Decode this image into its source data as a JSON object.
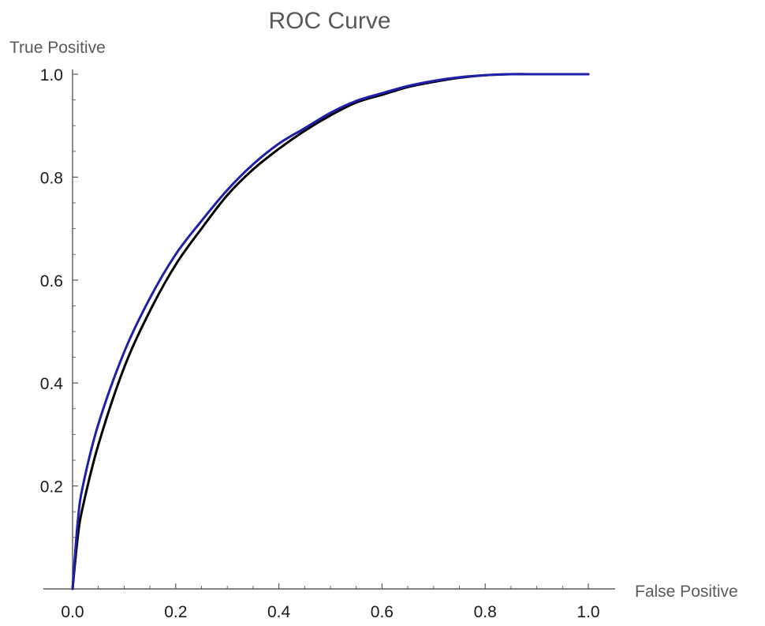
{
  "chart_data": {
    "type": "line",
    "title": "ROC Curve",
    "xlabel": "False Positive",
    "ylabel": "True Positive",
    "xlim": [
      0,
      1
    ],
    "ylim": [
      0,
      1
    ],
    "x_ticks": [
      "0.0",
      "0.2",
      "0.4",
      "0.6",
      "0.8",
      "1.0"
    ],
    "y_ticks": [
      "0.2",
      "0.4",
      "0.6",
      "0.8",
      "1.0"
    ],
    "grid": false,
    "legend": "none",
    "series": [
      {
        "color": "#000000",
        "x": [
          0,
          0.01,
          0.02,
          0.05,
          0.1,
          0.15,
          0.2,
          0.25,
          0.3,
          0.35,
          0.4,
          0.45,
          0.5,
          0.55,
          0.6,
          0.65,
          0.7,
          0.75,
          0.8,
          0.85,
          0.9,
          0.95,
          1.0
        ],
        "y": [
          0,
          0.1,
          0.16,
          0.28,
          0.43,
          0.54,
          0.63,
          0.7,
          0.765,
          0.815,
          0.855,
          0.89,
          0.92,
          0.945,
          0.96,
          0.975,
          0.985,
          0.993,
          0.998,
          1.0,
          1.0,
          1.0,
          1.0
        ]
      },
      {
        "color": "#1f1faa",
        "x": [
          0,
          0.01,
          0.02,
          0.05,
          0.1,
          0.15,
          0.2,
          0.25,
          0.3,
          0.35,
          0.4,
          0.45,
          0.5,
          0.55,
          0.6,
          0.65,
          0.7,
          0.75,
          0.8,
          0.85,
          0.9,
          0.95,
          1.0
        ],
        "y": [
          0,
          0.13,
          0.2,
          0.32,
          0.46,
          0.565,
          0.65,
          0.715,
          0.775,
          0.825,
          0.865,
          0.895,
          0.925,
          0.948,
          0.963,
          0.977,
          0.987,
          0.994,
          0.998,
          1.0,
          1.0,
          1.0,
          1.0
        ]
      }
    ]
  }
}
